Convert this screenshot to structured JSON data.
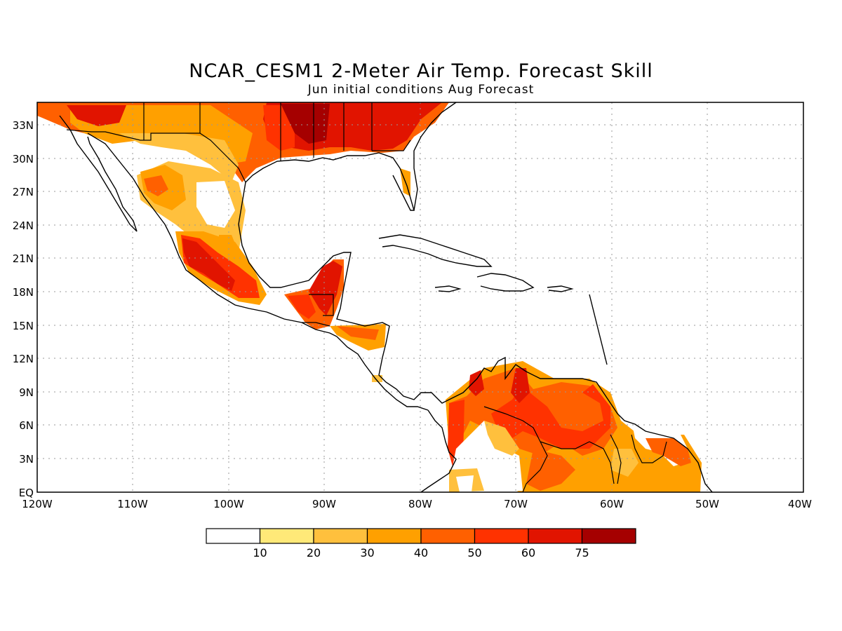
{
  "title": "NCAR_CESM1 2-Meter Air Temp. Forecast Skill",
  "subtitle": "Jun initial conditions  Aug Forecast",
  "lat_labels": [
    "33N",
    "30N",
    "27N",
    "24N",
    "21N",
    "18N",
    "15N",
    "12N",
    "9N",
    "6N",
    "3N",
    "EQ"
  ],
  "lon_labels": [
    "120W",
    "110W",
    "100W",
    "90W",
    "80W",
    "70W",
    "60W",
    "50W",
    "40W"
  ],
  "legend": {
    "thresholds": [
      "10",
      "20",
      "30",
      "40",
      "50",
      "60",
      "75"
    ],
    "colors": [
      "#ffffff",
      "#ffe978",
      "#ffc03d",
      "#ffa000",
      "#ff6000",
      "#ff3200",
      "#e11400",
      "#a50000"
    ]
  },
  "colors": {
    "coast": "#000000",
    "grid": "#999999"
  }
}
